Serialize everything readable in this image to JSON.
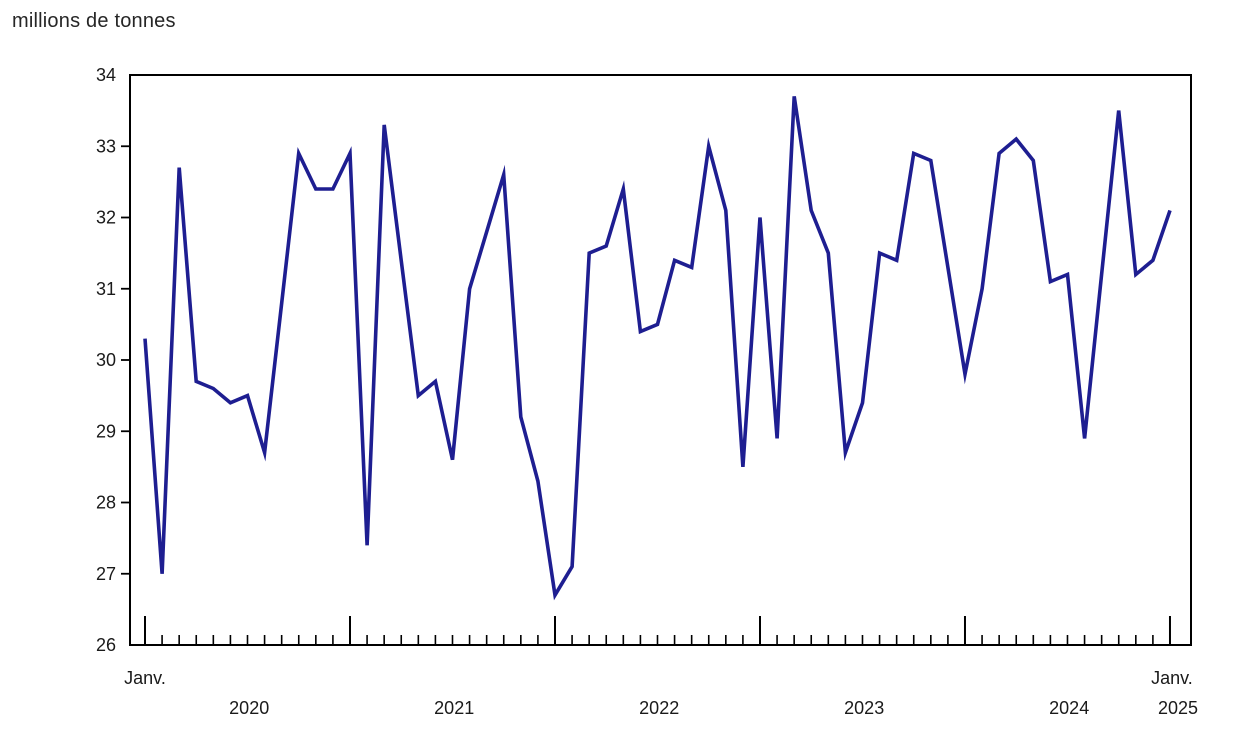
{
  "chart_data": {
    "type": "line",
    "title": "millions de tonnes",
    "line_color": "#1e1e91",
    "axis_color": "#000000",
    "ylim": [
      26,
      34
    ],
    "yticks": [
      26,
      27,
      28,
      29,
      30,
      31,
      32,
      33,
      34
    ],
    "grid": false,
    "legend": "none",
    "x_start_label": "Janv.",
    "x_end_label": "Janv.",
    "x_year_labels": [
      "2020",
      "2021",
      "2022",
      "2023",
      "2024"
    ],
    "x_end_year_label": "2025",
    "x": [
      "2020-01",
      "2020-02",
      "2020-03",
      "2020-04",
      "2020-05",
      "2020-06",
      "2020-07",
      "2020-08",
      "2020-09",
      "2020-10",
      "2020-11",
      "2020-12",
      "2021-01",
      "2021-02",
      "2021-03",
      "2021-04",
      "2021-05",
      "2021-06",
      "2021-07",
      "2021-08",
      "2021-09",
      "2021-10",
      "2021-11",
      "2021-12",
      "2022-01",
      "2022-02",
      "2022-03",
      "2022-04",
      "2022-05",
      "2022-06",
      "2022-07",
      "2022-08",
      "2022-09",
      "2022-10",
      "2022-11",
      "2022-12",
      "2023-01",
      "2023-02",
      "2023-03",
      "2023-04",
      "2023-05",
      "2023-06",
      "2023-07",
      "2023-08",
      "2023-09",
      "2023-10",
      "2023-11",
      "2023-12",
      "2024-01",
      "2024-02",
      "2024-03",
      "2024-04",
      "2024-05",
      "2024-06",
      "2024-07",
      "2024-08",
      "2024-09",
      "2024-10",
      "2024-11",
      "2024-12",
      "2025-01"
    ],
    "values": [
      30.3,
      27.0,
      32.7,
      29.7,
      29.6,
      29.4,
      29.5,
      28.7,
      30.8,
      32.9,
      32.4,
      32.4,
      32.9,
      27.4,
      33.3,
      31.4,
      29.5,
      29.7,
      28.6,
      31.0,
      31.8,
      32.6,
      29.2,
      28.3,
      26.7,
      27.1,
      31.5,
      31.6,
      32.4,
      30.4,
      30.5,
      31.4,
      31.3,
      33.0,
      32.1,
      28.5,
      32.0,
      28.9,
      33.7,
      32.1,
      31.5,
      28.7,
      29.4,
      31.5,
      31.4,
      32.9,
      32.8,
      31.3,
      29.8,
      31.0,
      32.9,
      33.1,
      32.8,
      31.1,
      31.2,
      28.9,
      31.2,
      33.5,
      31.2,
      31.4,
      32.1
    ]
  }
}
